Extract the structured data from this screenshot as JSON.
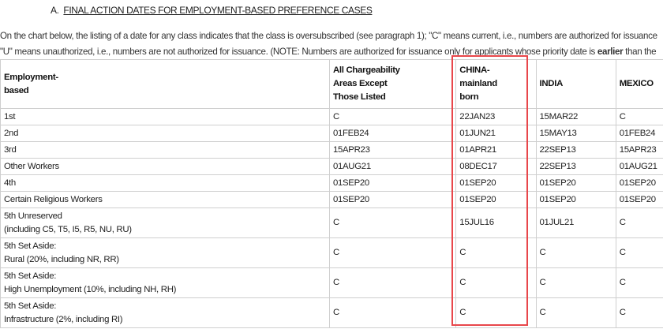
{
  "section_heading": {
    "prefix": "A.",
    "title": "FINAL ACTION DATES FOR EMPLOYMENT-BASED PREFERENCE CASES"
  },
  "paragraph": {
    "line1": "On the chart below, the listing of a date for any class indicates that the class is oversubscribed (see paragraph 1); \"C\" means current, i.e., numbers are authorized for issuance",
    "line2_pre": "\"U\" means unauthorized, i.e., numbers are not authorized for issuance. (NOTE: Numbers are authorized for issuance only for applicants whose priority date is ",
    "line2_bold": "earlier",
    "line2_post": " than the"
  },
  "table": {
    "headers": [
      [
        "Employment-",
        "based"
      ],
      [
        "All Chargeability",
        "Areas Except",
        "Those Listed"
      ],
      [
        "CHINA-",
        "mainland",
        "born"
      ],
      [
        "INDIA"
      ],
      [
        "MEXICO"
      ]
    ],
    "rows": [
      {
        "category": [
          "1st"
        ],
        "values": [
          "C",
          "22JAN23",
          "15MAR22",
          "C"
        ]
      },
      {
        "category": [
          "2nd"
        ],
        "values": [
          "01FEB24",
          "01JUN21",
          "15MAY13",
          "01FEB24"
        ]
      },
      {
        "category": [
          "3rd"
        ],
        "values": [
          "15APR23",
          "01APR21",
          "22SEP13",
          "15APR23"
        ]
      },
      {
        "category": [
          "Other Workers"
        ],
        "values": [
          "01AUG21",
          "08DEC17",
          "22SEP13",
          "01AUG21"
        ]
      },
      {
        "category": [
          "4th"
        ],
        "values": [
          "01SEP20",
          "01SEP20",
          "01SEP20",
          "01SEP20"
        ]
      },
      {
        "category": [
          "Certain Religious Workers"
        ],
        "values": [
          "01SEP20",
          "01SEP20",
          "01SEP20",
          "01SEP20"
        ]
      },
      {
        "category": [
          "5th Unreserved",
          "(including C5, T5, I5, R5, NU, RU)"
        ],
        "values": [
          "C",
          "15JUL16",
          "01JUL21",
          "C"
        ]
      },
      {
        "category": [
          "5th Set Aside:",
          "Rural (20%, including NR, RR)"
        ],
        "values": [
          "C",
          "C",
          "C",
          "C"
        ]
      },
      {
        "category": [
          "5th Set Aside:",
          "High Unemployment (10%, including NH, RH)"
        ],
        "values": [
          "C",
          "C",
          "C",
          "C"
        ]
      },
      {
        "category": [
          "5th Set Aside:",
          "Infrastructure (2%, including RI)"
        ],
        "values": [
          "C",
          "C",
          "C",
          "C"
        ]
      }
    ],
    "highlight_color": "#e8474b"
  }
}
